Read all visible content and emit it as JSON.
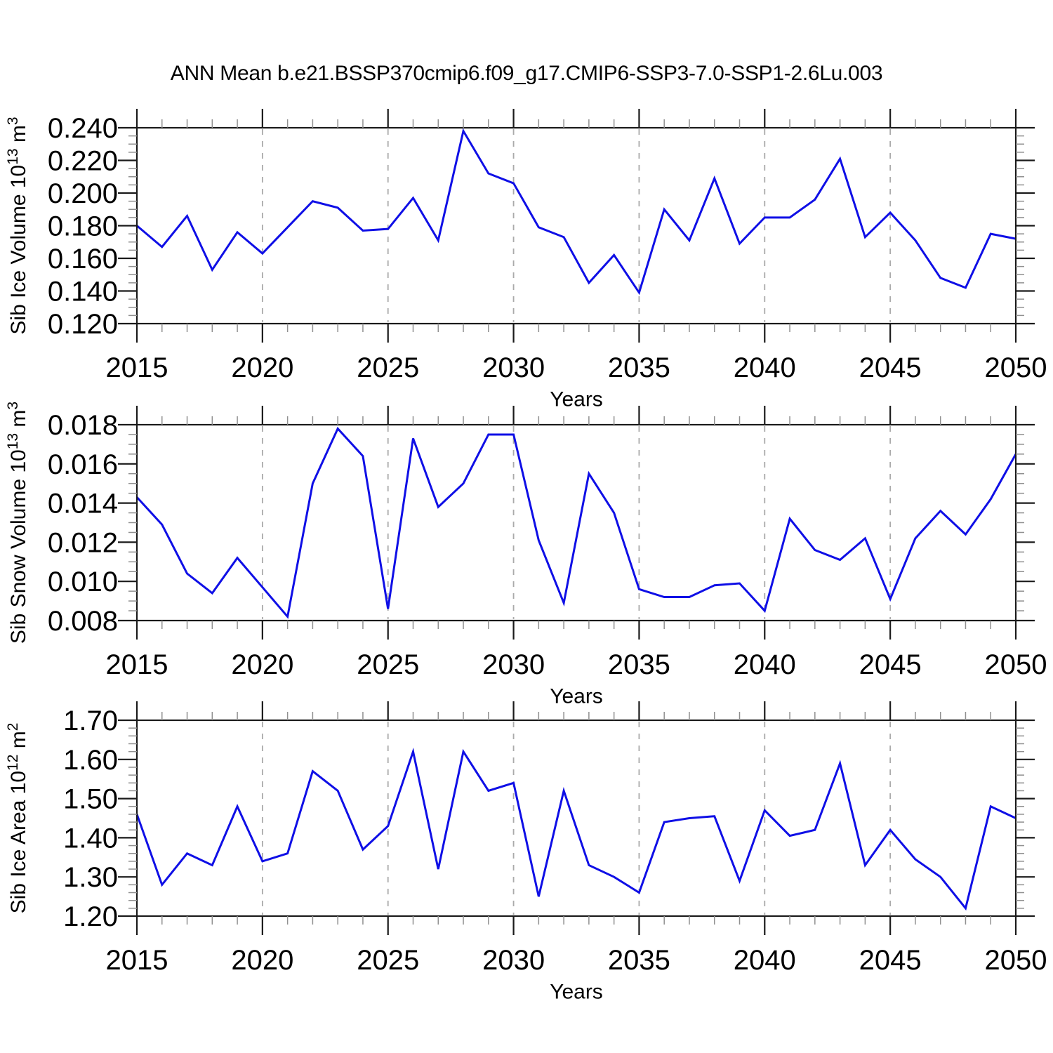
{
  "page_title": "ANN Mean b.e21.BSSP370cmip6.f09_g17.CMIP6-SSP3-7.0-SSP1-2.6Lu.003",
  "line_color": "#0f0fe6",
  "grid_color": "#aaaaaa",
  "axis_color": "#1a1a1a",
  "minor_tick_color": "#909090",
  "chart_data": [
    {
      "type": "line",
      "panel": "sib-ice-volume",
      "ylabel": "Sib Ice Volume 10^13 m^3",
      "ylabel_parts": [
        [
          "Sib Ice Volume 10",
          0
        ],
        [
          "13",
          1
        ],
        [
          " m",
          0
        ],
        [
          "3",
          1
        ]
      ],
      "xlabel": "Years",
      "x": [
        2015,
        2016,
        2017,
        2018,
        2019,
        2020,
        2021,
        2022,
        2023,
        2024,
        2025,
        2026,
        2027,
        2028,
        2029,
        2030,
        2031,
        2032,
        2033,
        2034,
        2035,
        2036,
        2037,
        2038,
        2039,
        2040,
        2041,
        2042,
        2043,
        2044,
        2045,
        2046,
        2047,
        2048,
        2049,
        2050
      ],
      "values": [
        0.18,
        0.167,
        0.186,
        0.153,
        0.176,
        0.163,
        0.179,
        0.195,
        0.191,
        0.177,
        0.178,
        0.197,
        0.171,
        0.238,
        0.212,
        0.206,
        0.179,
        0.173,
        0.145,
        0.162,
        0.139,
        0.19,
        0.171,
        0.209,
        0.169,
        0.185,
        0.185,
        0.196,
        0.221,
        0.173,
        0.188,
        0.171,
        0.148,
        0.142,
        0.175,
        0.172
      ],
      "xlim": [
        2015,
        2050
      ],
      "ylim": [
        0.12,
        0.24
      ],
      "yticks": [
        0.12,
        0.14,
        0.16,
        0.18,
        0.2,
        0.22,
        0.24
      ],
      "ytick_labels": [
        "0.120",
        "0.140",
        "0.160",
        "0.180",
        "0.200",
        "0.220",
        "0.240"
      ],
      "y_minor_step": 0.005,
      "xticks": [
        2015,
        2020,
        2025,
        2030,
        2035,
        2040,
        2045,
        2050
      ],
      "xtick_labels": [
        "2015",
        "2020",
        "2025",
        "2030",
        "2035",
        "2040",
        "2045",
        "2050"
      ],
      "x_minor_step": 1,
      "grid_years": [
        2020,
        2025,
        2030,
        2035,
        2040,
        2045
      ],
      "grid_on": true,
      "legend": "none"
    },
    {
      "type": "line",
      "panel": "sib-snow-volume",
      "ylabel": "Sib Snow Volume 10^13 m^3",
      "ylabel_parts": [
        [
          "Sib Snow Volume 10",
          0
        ],
        [
          "13",
          1
        ],
        [
          " m",
          0
        ],
        [
          "3",
          1
        ]
      ],
      "xlabel": "Years",
      "x": [
        2015,
        2016,
        2017,
        2018,
        2019,
        2020,
        2021,
        2022,
        2023,
        2024,
        2025,
        2026,
        2027,
        2028,
        2029,
        2030,
        2031,
        2032,
        2033,
        2034,
        2035,
        2036,
        2037,
        2038,
        2039,
        2040,
        2041,
        2042,
        2043,
        2044,
        2045,
        2046,
        2047,
        2048,
        2049,
        2050
      ],
      "values": [
        0.0143,
        0.0129,
        0.0104,
        0.0094,
        0.0112,
        0.0097,
        0.0082,
        0.015,
        0.0178,
        0.0164,
        0.0086,
        0.0173,
        0.0138,
        0.015,
        0.0175,
        0.0175,
        0.0121,
        0.0089,
        0.0155,
        0.0135,
        0.0096,
        0.0092,
        0.0092,
        0.0098,
        0.0099,
        0.0085,
        0.0132,
        0.0116,
        0.0111,
        0.0122,
        0.0091,
        0.0122,
        0.0136,
        0.0124,
        0.0142,
        0.0165
      ],
      "xlim": [
        2015,
        2050
      ],
      "ylim": [
        0.008,
        0.018
      ],
      "yticks": [
        0.008,
        0.01,
        0.012,
        0.014,
        0.016,
        0.018
      ],
      "ytick_labels": [
        "0.008",
        "0.010",
        "0.012",
        "0.014",
        "0.016",
        "0.018"
      ],
      "y_minor_step": 0.0005,
      "xticks": [
        2015,
        2020,
        2025,
        2030,
        2035,
        2040,
        2045,
        2050
      ],
      "xtick_labels": [
        "2015",
        "2020",
        "2025",
        "2030",
        "2035",
        "2040",
        "2045",
        "2050"
      ],
      "x_minor_step": 1,
      "grid_years": [
        2020,
        2025,
        2030,
        2035,
        2040,
        2045
      ],
      "grid_on": true,
      "legend": "none"
    },
    {
      "type": "line",
      "panel": "sib-ice-area",
      "ylabel": "Sib Ice Area 10^12 m^2",
      "ylabel_parts": [
        [
          "Sib Ice Area 10",
          0
        ],
        [
          "12",
          1
        ],
        [
          " m",
          0
        ],
        [
          "2",
          1
        ]
      ],
      "xlabel": "Years",
      "x": [
        2015,
        2016,
        2017,
        2018,
        2019,
        2020,
        2021,
        2022,
        2023,
        2024,
        2025,
        2026,
        2027,
        2028,
        2029,
        2030,
        2031,
        2032,
        2033,
        2034,
        2035,
        2036,
        2037,
        2038,
        2039,
        2040,
        2041,
        2042,
        2043,
        2044,
        2045,
        2046,
        2047,
        2048,
        2049,
        2050
      ],
      "values": [
        1.46,
        1.28,
        1.36,
        1.33,
        1.48,
        1.34,
        1.36,
        1.57,
        1.52,
        1.37,
        1.43,
        1.62,
        1.32,
        1.62,
        1.52,
        1.54,
        1.25,
        1.52,
        1.33,
        1.3,
        1.26,
        1.44,
        1.45,
        1.455,
        1.29,
        1.47,
        1.405,
        1.42,
        1.59,
        1.33,
        1.42,
        1.345,
        1.3,
        1.22,
        1.48,
        1.45
      ],
      "xlim": [
        2015,
        2050
      ],
      "ylim": [
        1.2,
        1.7
      ],
      "yticks": [
        1.2,
        1.3,
        1.4,
        1.5,
        1.6,
        1.7
      ],
      "ytick_labels": [
        "1.20",
        "1.30",
        "1.40",
        "1.50",
        "1.60",
        "1.70"
      ],
      "y_minor_step": 0.02,
      "xticks": [
        2015,
        2020,
        2025,
        2030,
        2035,
        2040,
        2045,
        2050
      ],
      "xtick_labels": [
        "2015",
        "2020",
        "2025",
        "2030",
        "2035",
        "2040",
        "2045",
        "2050"
      ],
      "x_minor_step": 1,
      "grid_years": [
        2020,
        2025,
        2030,
        2035,
        2040,
        2045
      ],
      "grid_on": true,
      "legend": "none"
    }
  ]
}
